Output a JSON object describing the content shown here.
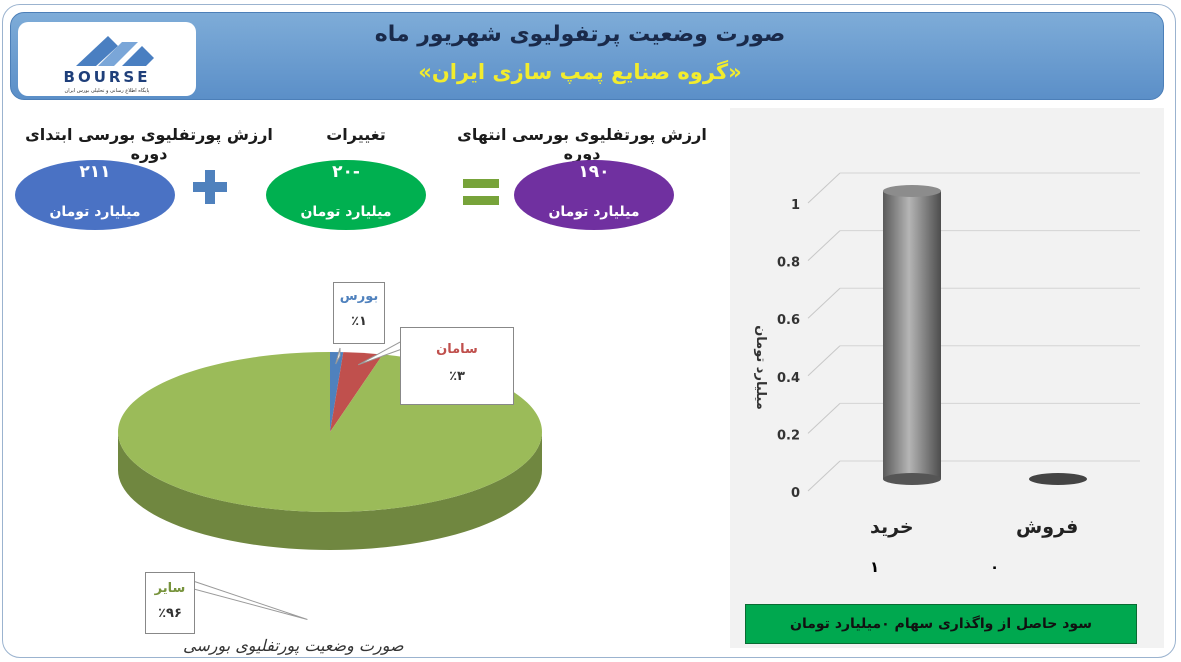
{
  "header": {
    "title": "صورت وضعیت پرتفولیوی شهریور ماه",
    "subtitle": "«گروه صنایع پمپ سازی ایران»",
    "logo_text": "BOURSE",
    "logo_tagline": "پایگاه اطلاع رسانی و تحلیلی بورس ایران"
  },
  "summary": {
    "start_label": "ارزش پورتفلیوی بورسی ابتدای دوره",
    "start_value": "۲۱۱",
    "change_label": "تغییرات",
    "change_value": "-۲۰",
    "end_label": "ارزش پورتفلیوی بورسی انتهای دوره",
    "end_value": "۱۹۰",
    "unit": "میلیارد تومان",
    "colors": {
      "start": "#4a72c4",
      "change": "#00b050",
      "end": "#7030a0",
      "operator": "#4f81bd",
      "equals": "#77a33a"
    }
  },
  "footer_caption": "صورت وضعیت پورتفلیوی بورسی",
  "bar_note": "سود حاصل از واگذاری سهام ۰میلیارد تومان",
  "chart_data": [
    {
      "type": "pie",
      "categories": [
        "بورس",
        "سامان",
        "سایر"
      ],
      "values": [
        1,
        3,
        96
      ],
      "value_labels": [
        "٪۱",
        "٪۳",
        "٪۹۶"
      ],
      "colors": [
        "#4f81bd",
        "#c0504d",
        "#9bbb59"
      ],
      "legend": "none"
    },
    {
      "type": "bar",
      "categories": [
        "خرید",
        "فروش"
      ],
      "values": [
        1,
        0
      ],
      "value_labels": [
        "۱",
        "۰"
      ],
      "ylabel": "میلیارد تومان",
      "ylim": [
        0,
        1
      ],
      "yticks": [
        "0",
        "0.2",
        "0.4",
        "0.6",
        "0.8",
        "1"
      ],
      "color": "#7f7f7f",
      "grid": true
    }
  ]
}
